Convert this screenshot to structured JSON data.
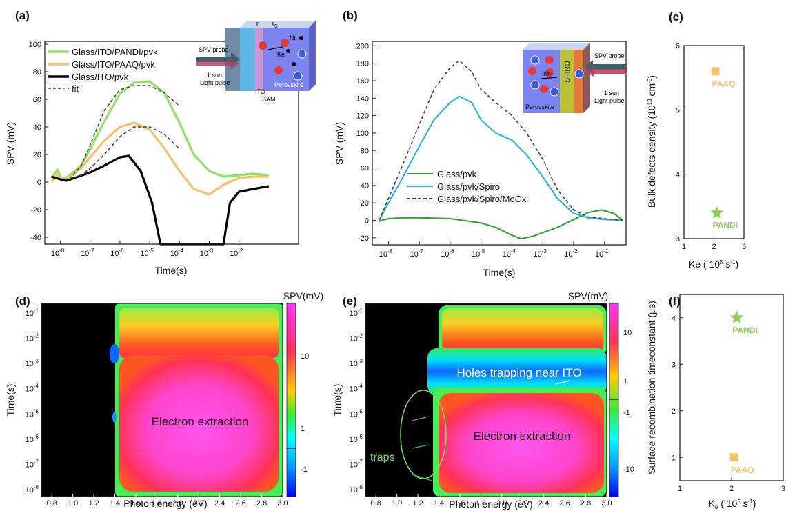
{
  "colors": {
    "pandi": "#8fdf6a",
    "paaq": "#f5c06b",
    "ito": "#000000",
    "green": "#2ca02c",
    "cyan": "#1fb1e6",
    "fit": "#444444",
    "star": "#8dd05a",
    "square": "#f2c26c"
  },
  "chart_data": [
    {
      "panel": "(a)",
      "type": "line",
      "x_scale": "log",
      "xlabel": "Time(s)",
      "ylabel": "SPV (mV)",
      "xlim": [
        3e-09,
        1
      ],
      "ylim": [
        -45,
        102
      ],
      "x_ticks": [
        "10-8",
        "10-7",
        "10-6",
        "10-5",
        "10-4",
        "10-3",
        "10-2"
      ],
      "y_ticks": [
        -40,
        -20,
        0,
        20,
        40,
        60,
        80,
        100
      ],
      "legend_position": "top-left",
      "series": [
        {
          "name": "Glass/ITO/PANDI/pvk",
          "style": "line",
          "color_key": "pandi",
          "x": [
            5e-09,
            8e-09,
            1.1e-08,
            1.8e-08,
            5e-08,
            1e-07,
            3e-07,
            1e-06,
            3e-06,
            1e-05,
            3e-05,
            0.0001,
            0.0003,
            0.001,
            0.003,
            0.01,
            0.03,
            0.1
          ],
          "y": [
            3,
            9,
            2,
            4,
            12,
            24,
            44,
            64,
            72,
            73,
            65,
            43,
            20,
            8,
            4,
            5,
            6,
            5
          ]
        },
        {
          "name": "Glass/ITO/PAAQ/pvk",
          "style": "line",
          "color_key": "paaq",
          "x": [
            5e-09,
            8e-09,
            1.1e-08,
            1.8e-08,
            5e-08,
            1e-07,
            3e-07,
            1e-06,
            3e-06,
            1e-05,
            3e-05,
            0.0001,
            0.0003,
            0.001,
            0.003,
            0.01,
            0.03,
            0.1
          ],
          "y": [
            0,
            6,
            1,
            3,
            10,
            18,
            30,
            40,
            43,
            38,
            25,
            8,
            -5,
            -9,
            -2,
            3,
            4,
            4
          ]
        },
        {
          "name": "Glass/ITO/pvk",
          "style": "line",
          "color_key": "ito",
          "x": [
            5e-09,
            1e-08,
            1.6e-08,
            3e-08,
            1e-07,
            3e-07,
            1e-06,
            2e-06,
            5e-06,
            1.2e-05,
            2.3e-05,
            0.003,
            0.005,
            0.01,
            0.03,
            0.1
          ],
          "y": [
            4,
            2,
            1,
            3,
            7,
            12,
            18,
            19,
            8,
            -15,
            -45,
            -45,
            -15,
            -7,
            -5,
            -3
          ]
        },
        {
          "name": "fit",
          "style": "dashed",
          "color_key": "fit",
          "x": [
            2e-08,
            5e-08,
            1e-07,
            3e-07,
            1e-06,
            3e-06,
            1e-05,
            3e-05,
            0.0001
          ],
          "y": [
            2,
            12,
            27,
            52,
            67,
            70,
            70,
            65,
            55
          ]
        },
        {
          "name": "",
          "style": "dashed",
          "color_key": "fit",
          "x": [
            2e-08,
            5e-08,
            1e-07,
            3e-07,
            1e-06,
            3e-06,
            1e-05,
            3e-05,
            0.0001
          ],
          "y": [
            2,
            5,
            10,
            20,
            33,
            40,
            40,
            35,
            24
          ]
        }
      ]
    },
    {
      "panel": "(b)",
      "type": "line",
      "x_scale": "log",
      "xlabel": "Time(s)",
      "ylabel": "SPV (mV)",
      "xlim": [
        3e-09,
        0.5
      ],
      "ylim": [
        -28,
        205
      ],
      "x_ticks": [
        "10-8",
        "10-7",
        "10-6",
        "10-5",
        "10-4",
        "10-3",
        "10-2",
        "10-1"
      ],
      "y_ticks": [
        -20,
        0,
        20,
        40,
        60,
        80,
        100,
        120,
        140,
        160,
        180,
        200
      ],
      "legend_position": "center-left",
      "series": [
        {
          "name": "Glass/pvk",
          "style": "line",
          "color_key": "green",
          "x": [
            5e-09,
            1e-08,
            3e-08,
            1e-07,
            1e-06,
            1e-05,
            3e-05,
            0.0001,
            0.0002,
            0.0005,
            0.001,
            0.003,
            0.01,
            0.03,
            0.08,
            0.2,
            0.4
          ],
          "y": [
            -1,
            2,
            3,
            3,
            2,
            -3,
            -8,
            -17,
            -21,
            -18,
            -14,
            -8,
            1,
            9,
            12,
            8,
            0
          ]
        },
        {
          "name": "Glass/pvk/Spiro",
          "style": "line",
          "color_key": "cyan",
          "x": [
            5e-09,
            1e-08,
            3e-08,
            1e-07,
            3e-07,
            1e-06,
            2e-06,
            5e-06,
            1e-05,
            3e-05,
            0.0001,
            0.0003,
            0.001,
            0.003,
            0.01,
            0.03,
            0.1,
            0.4
          ],
          "y": [
            0,
            20,
            50,
            85,
            115,
            135,
            142,
            135,
            115,
            100,
            92,
            75,
            50,
            25,
            8,
            3,
            1,
            0
          ]
        },
        {
          "name": "Glass/pvk/Spiro/MoOx",
          "style": "dashed",
          "color_key": "fit",
          "x": [
            5e-09,
            1e-08,
            3e-08,
            1e-07,
            3e-07,
            1e-06,
            2e-06,
            5e-06,
            1e-05,
            3e-05,
            0.0001,
            0.0003,
            0.001,
            0.003,
            0.01,
            0.03,
            0.1,
            0.4
          ],
          "y": [
            0,
            25,
            65,
            110,
            150,
            175,
            183,
            170,
            150,
            135,
            120,
            100,
            70,
            35,
            12,
            4,
            2,
            0
          ]
        }
      ]
    },
    {
      "panel": "(c)",
      "type": "scatter",
      "xlabel": "Ke ( 10",
      "xlabel_sup": "5",
      "xlabel_unit": " s",
      "xlabel_unit_sup": "-1",
      "xlabel_end": ")",
      "ylabel": "Bulk defects density (10",
      "ylabel_sup": "13",
      "ylabel_mid": " cm",
      "ylabel_unit_sup": "-3",
      "ylabel_end": ")",
      "xlim": [
        1,
        3
      ],
      "ylim": [
        3,
        6
      ],
      "x_ticks": [
        1,
        2,
        3
      ],
      "y_ticks": [
        3,
        4,
        5,
        6
      ],
      "points": [
        {
          "label": "PAAQ",
          "x": 2.05,
          "y": 5.6,
          "marker": "square",
          "color_key": "square"
        },
        {
          "label": "PANDI",
          "x": 2.1,
          "y": 3.4,
          "marker": "star",
          "color_key": "star"
        }
      ]
    },
    {
      "panel": "(d)",
      "type": "heatmap",
      "xlabel": "Photon energy (eV)",
      "ylabel": "Time(s)",
      "x_ticks": [
        "0.8",
        "1.0",
        "1.2",
        "1.4",
        "1.6",
        "1.8",
        "2.0",
        "2.2",
        "2.4",
        "2.6",
        "2.8",
        "3.0"
      ],
      "y_ticks": [
        "10-8",
        "10-7",
        "10-6",
        "10-5",
        "10-4",
        "10-3",
        "10-2",
        "10-1"
      ],
      "colorbar_title": "SPV(mV)",
      "colorbar_ticks": [
        "10",
        "1",
        "-1"
      ],
      "annotation": "Electron extraction"
    },
    {
      "panel": "(e)",
      "type": "heatmap",
      "xlabel": "Photon energy (eV)",
      "ylabel": "Time(s)",
      "x_ticks": [
        "0.8",
        "1.0",
        "1.2",
        "1.4",
        "1.6",
        "1.8",
        "2.0",
        "2.2",
        "2.4",
        "2.6",
        "2.8",
        "3.0"
      ],
      "y_ticks": [
        "10-8",
        "10-7",
        "10-6",
        "10-5",
        "10-4",
        "10-3",
        "10-2",
        "10-1"
      ],
      "colorbar_title": "SPV(mV)",
      "colorbar_ticks": [
        "10",
        "1",
        "-1",
        "-10"
      ],
      "annotations": [
        "Holes trapping near ITO",
        "Electron extraction",
        "traps"
      ]
    },
    {
      "panel": "(f)",
      "type": "scatter",
      "xlabel": "K",
      "xlabel_sub": "e",
      "xlabel_rest": " ( 10",
      "xlabel_sup": "5",
      "xlabel_unit": " s",
      "xlabel_unit_sup": "-1",
      "xlabel_end": ")",
      "ylabel": "Surface recombination timeconstant (μs)",
      "xlim": [
        1,
        3
      ],
      "ylim": [
        0.5,
        4.5
      ],
      "x_ticks": [
        1,
        2,
        3
      ],
      "y_ticks": [
        1,
        2,
        3,
        4
      ],
      "points": [
        {
          "label": "PANDI",
          "x": 2.1,
          "y": 4.0,
          "marker": "star",
          "color_key": "star"
        },
        {
          "label": "PAAQ",
          "x": 2.05,
          "y": 1.0,
          "marker": "square",
          "color_key": "square"
        }
      ]
    }
  ],
  "insets": {
    "a": {
      "tau_i": "τ",
      "tau_i_sub": "i",
      "tau_s": "τ",
      "tau_s_sub": "S",
      "nt": "Nt",
      "ke": "Ke",
      "spv_probe": "SPV probe",
      "sun": "1 sun",
      "pulse": "Light pulse",
      "ito": "ITO",
      "sam": "SAM",
      "perovskite": "Perovskite"
    },
    "b": {
      "spiro": "SPIRO",
      "kh": "Kh",
      "perovskite": "Perovskite",
      "spv_probe": "SPV probe",
      "sun": "1 sun",
      "pulse": "Light pulse"
    }
  }
}
